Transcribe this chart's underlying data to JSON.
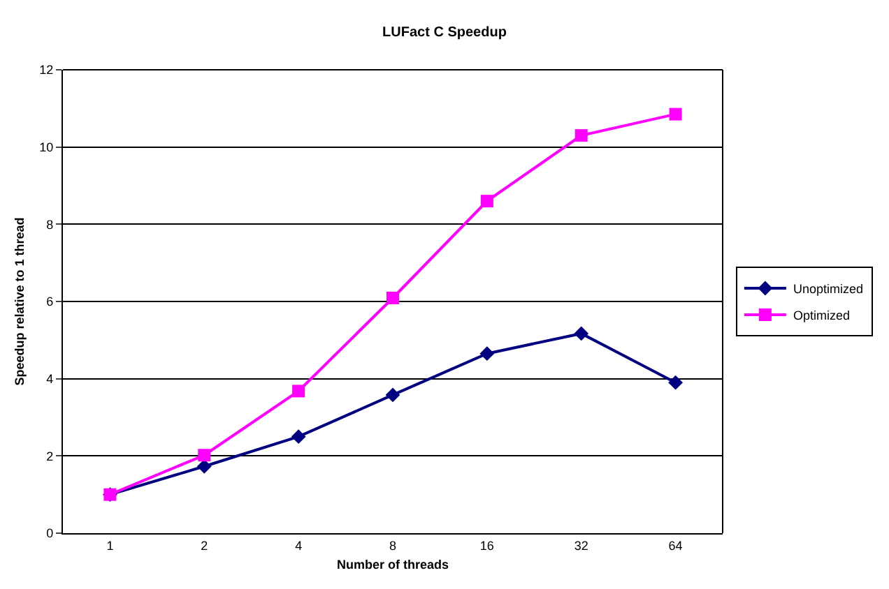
{
  "chart_data": {
    "type": "line",
    "title": "LUFact C Speedup",
    "xlabel": "Number of threads",
    "ylabel": "Speedup relative to 1 thread",
    "categories": [
      "1",
      "2",
      "4",
      "8",
      "16",
      "32",
      "64"
    ],
    "series": [
      {
        "name": "Unoptimized",
        "color": "#000080",
        "marker": "diamond",
        "values": [
          1.0,
          1.73,
          2.5,
          3.58,
          4.65,
          5.17,
          3.9
        ]
      },
      {
        "name": "Optimized",
        "color": "#ff00ff",
        "marker": "square",
        "values": [
          1.0,
          2.02,
          3.68,
          6.09,
          8.6,
          10.3,
          10.85
        ]
      }
    ],
    "ylim": [
      0,
      12
    ],
    "yticks": [
      0,
      2,
      4,
      6,
      8,
      10,
      12
    ],
    "grid": "y",
    "legend": "right",
    "line_style": "solid"
  }
}
